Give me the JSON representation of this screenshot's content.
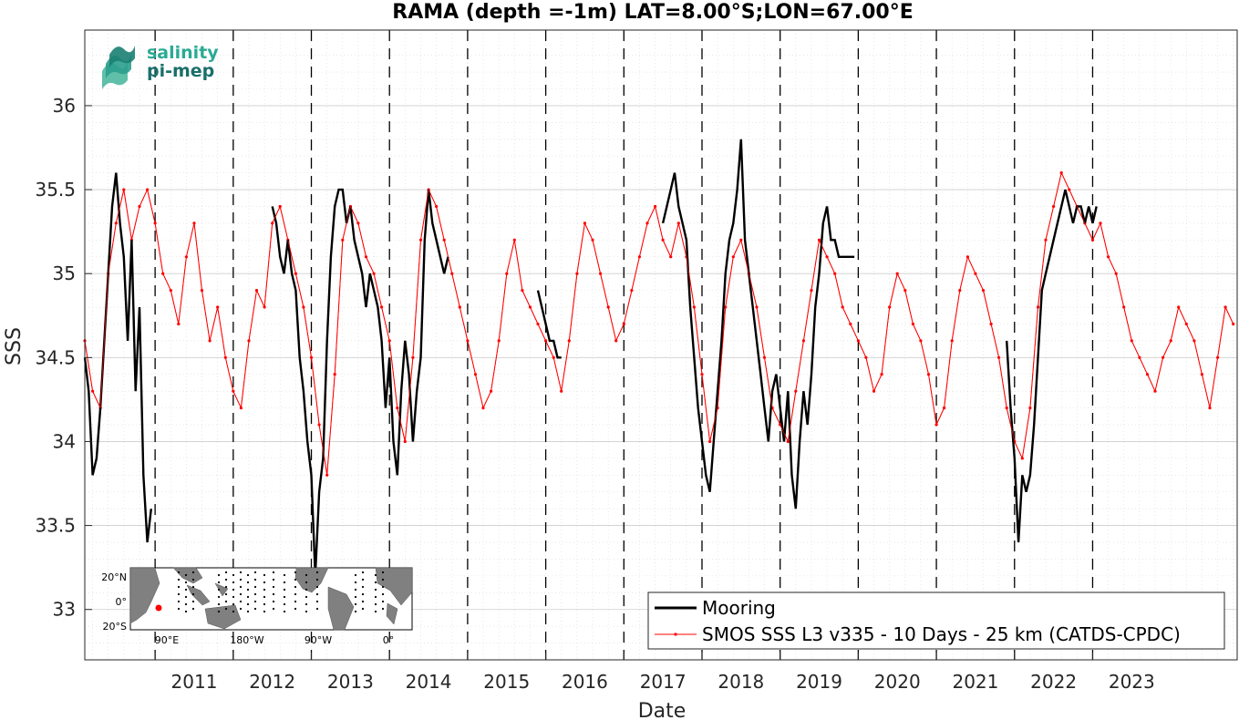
{
  "logo": {
    "line1": "salinity",
    "line2": "pi-mep"
  },
  "chart_data": {
    "type": "line",
    "title": "RAMA (depth =-1m) LAT=8.00°S;LON=67.00°E",
    "xlabel": "Date",
    "ylabel": "SSS",
    "xlim": [
      2010.1,
      2024.85
    ],
    "ylim": [
      32.7,
      36.45
    ],
    "x_ticks": [
      2011,
      2012,
      2013,
      2014,
      2015,
      2016,
      2017,
      2018,
      2019,
      2020,
      2021,
      2022,
      2023
    ],
    "x_tick_labels": [
      "2011",
      "2012",
      "2013",
      "2014",
      "2015",
      "2016",
      "2017",
      "2018",
      "2019",
      "2020",
      "2021",
      "2022",
      "2023"
    ],
    "y_ticks": [
      33,
      33.5,
      34,
      34.5,
      35,
      35.5,
      36
    ],
    "y_tick_labels": [
      "33",
      "33.5",
      "34",
      "34.5",
      "35",
      "35.5",
      "36"
    ],
    "grid": true,
    "year_dividers": [
      2011,
      2012,
      2013,
      2014,
      2015,
      2016,
      2017,
      2018,
      2019,
      2020,
      2021,
      2022,
      2023
    ],
    "legend_position": "bottom-right",
    "series": [
      {
        "name": "Mooring",
        "color": "#000000",
        "segments": [
          {
            "x": [
              2010.1,
              2010.15,
              2010.2,
              2010.25,
              2010.3,
              2010.35,
              2010.4,
              2010.45,
              2010.5,
              2010.55,
              2010.6,
              2010.65,
              2010.7,
              2010.75,
              2010.8,
              2010.85,
              2010.9,
              2010.95
            ],
            "y": [
              34.5,
              34.3,
              33.8,
              33.9,
              34.2,
              34.6,
              35.0,
              35.4,
              35.6,
              35.3,
              35.1,
              34.6,
              35.2,
              34.3,
              34.8,
              33.8,
              33.4,
              33.6
            ]
          },
          {
            "x": [
              2012.5,
              2012.55,
              2012.6,
              2012.65,
              2012.7,
              2012.75,
              2012.8,
              2012.85,
              2012.9,
              2012.95,
              2013.0,
              2013.05,
              2013.1,
              2013.15,
              2013.2,
              2013.25,
              2013.3,
              2013.35,
              2013.4,
              2013.45,
              2013.5,
              2013.55,
              2013.6,
              2013.65,
              2013.7,
              2013.75,
              2013.8,
              2013.85,
              2013.9,
              2013.95,
              2014.0,
              2014.05,
              2014.1,
              2014.15,
              2014.2,
              2014.25,
              2014.3,
              2014.35,
              2014.4,
              2014.45,
              2014.5,
              2014.55,
              2014.6,
              2014.65,
              2014.7,
              2014.75
            ],
            "y": [
              35.4,
              35.3,
              35.1,
              35.0,
              35.2,
              35.0,
              34.9,
              34.5,
              34.3,
              34.0,
              33.8,
              33.2,
              33.7,
              33.9,
              34.6,
              35.1,
              35.4,
              35.5,
              35.5,
              35.3,
              35.4,
              35.2,
              35.1,
              35.0,
              34.8,
              35.0,
              34.9,
              34.8,
              34.6,
              34.2,
              34.5,
              34.0,
              33.8,
              34.3,
              34.6,
              34.4,
              34.0,
              34.3,
              34.5,
              35.2,
              35.5,
              35.3,
              35.2,
              35.1,
              35.0,
              35.1
            ]
          },
          {
            "x": [
              2015.9,
              2015.95,
              2016.0,
              2016.05,
              2016.1,
              2016.15,
              2016.2
            ],
            "y": [
              34.9,
              34.8,
              34.7,
              34.6,
              34.6,
              34.5,
              34.5
            ]
          },
          {
            "x": [
              2017.5,
              2017.55,
              2017.6,
              2017.65,
              2017.7,
              2017.75,
              2017.8,
              2017.85,
              2017.9,
              2017.95,
              2018.0,
              2018.05,
              2018.1,
              2018.15,
              2018.2,
              2018.25,
              2018.3,
              2018.35,
              2018.4,
              2018.45,
              2018.5,
              2018.55,
              2018.6,
              2018.65,
              2018.7,
              2018.75,
              2018.8,
              2018.85,
              2018.9,
              2018.95,
              2019.0,
              2019.05,
              2019.1,
              2019.15,
              2019.2,
              2019.25,
              2019.3,
              2019.35,
              2019.4,
              2019.45,
              2019.5,
              2019.55,
              2019.6,
              2019.65,
              2019.7,
              2019.75,
              2019.8,
              2019.85,
              2019.9,
              2019.95
            ],
            "y": [
              35.3,
              35.4,
              35.5,
              35.6,
              35.4,
              35.3,
              35.2,
              34.8,
              34.5,
              34.2,
              34.0,
              33.8,
              33.7,
              34.0,
              34.3,
              34.6,
              35.0,
              35.2,
              35.3,
              35.5,
              35.8,
              35.2,
              35.0,
              34.8,
              34.6,
              34.4,
              34.2,
              34.0,
              34.3,
              34.4,
              34.2,
              34.0,
              34.3,
              33.8,
              33.6,
              34.0,
              34.3,
              34.1,
              34.4,
              34.8,
              35.0,
              35.3,
              35.4,
              35.2,
              35.2,
              35.1,
              35.1,
              35.1,
              35.1,
              35.1
            ]
          },
          {
            "x": [
              2021.9,
              2021.95,
              2022.0,
              2022.05,
              2022.1,
              2022.15,
              2022.2,
              2022.25,
              2022.3,
              2022.35,
              2022.4,
              2022.45,
              2022.5,
              2022.55,
              2022.6,
              2022.65,
              2022.7,
              2022.75,
              2022.8,
              2022.85,
              2022.9,
              2022.95,
              2023.0,
              2023.05
            ],
            "y": [
              34.6,
              34.2,
              33.9,
              33.4,
              33.8,
              33.7,
              33.8,
              34.1,
              34.5,
              34.9,
              35.0,
              35.1,
              35.2,
              35.3,
              35.4,
              35.5,
              35.4,
              35.3,
              35.4,
              35.4,
              35.3,
              35.4,
              35.3,
              35.4
            ]
          }
        ]
      },
      {
        "name": "SMOS SSS L3 v335 - 10 Days - 25 km (CATDS-CPDC)",
        "color": "#ff0000",
        "x": [
          2010.1,
          2010.2,
          2010.3,
          2010.4,
          2010.5,
          2010.6,
          2010.7,
          2010.8,
          2010.9,
          2011.0,
          2011.1,
          2011.2,
          2011.3,
          2011.4,
          2011.5,
          2011.6,
          2011.7,
          2011.8,
          2011.9,
          2012.0,
          2012.1,
          2012.2,
          2012.3,
          2012.4,
          2012.5,
          2012.6,
          2012.7,
          2012.8,
          2012.9,
          2013.0,
          2013.1,
          2013.2,
          2013.3,
          2013.4,
          2013.5,
          2013.6,
          2013.7,
          2013.8,
          2013.9,
          2014.0,
          2014.1,
          2014.2,
          2014.3,
          2014.4,
          2014.5,
          2014.6,
          2014.7,
          2014.8,
          2014.9,
          2015.0,
          2015.1,
          2015.2,
          2015.3,
          2015.4,
          2015.5,
          2015.6,
          2015.7,
          2015.8,
          2015.9,
          2016.0,
          2016.1,
          2016.2,
          2016.3,
          2016.4,
          2016.5,
          2016.6,
          2016.7,
          2016.8,
          2016.9,
          2017.0,
          2017.1,
          2017.2,
          2017.3,
          2017.4,
          2017.5,
          2017.6,
          2017.7,
          2017.8,
          2017.9,
          2018.0,
          2018.1,
          2018.2,
          2018.3,
          2018.4,
          2018.5,
          2018.6,
          2018.7,
          2018.8,
          2018.9,
          2019.0,
          2019.1,
          2019.2,
          2019.3,
          2019.4,
          2019.5,
          2019.6,
          2019.7,
          2019.8,
          2019.9,
          2020.0,
          2020.1,
          2020.2,
          2020.3,
          2020.4,
          2020.5,
          2020.6,
          2020.7,
          2020.8,
          2020.9,
          2021.0,
          2021.1,
          2021.2,
          2021.3,
          2021.4,
          2021.5,
          2021.6,
          2021.7,
          2021.8,
          2021.9,
          2022.0,
          2022.1,
          2022.2,
          2022.3,
          2022.4,
          2022.5,
          2022.6,
          2022.7,
          2022.8,
          2022.9,
          2023.0,
          2023.1,
          2023.2,
          2023.3,
          2023.4,
          2023.5,
          2023.6,
          2023.7,
          2023.8,
          2023.9,
          2024.0,
          2024.1,
          2024.2,
          2024.3,
          2024.4,
          2024.5,
          2024.6,
          2024.7,
          2024.8
        ],
        "y": [
          34.6,
          34.3,
          34.2,
          35.0,
          35.3,
          35.5,
          35.2,
          35.4,
          35.5,
          35.3,
          35.0,
          34.9,
          34.7,
          35.1,
          35.3,
          34.9,
          34.6,
          34.8,
          34.5,
          34.3,
          34.2,
          34.6,
          34.9,
          34.8,
          35.3,
          35.4,
          35.2,
          35.0,
          34.8,
          34.5,
          34.1,
          33.8,
          34.4,
          35.2,
          35.4,
          35.3,
          35.1,
          35.0,
          34.8,
          34.6,
          34.2,
          34.0,
          34.5,
          35.2,
          35.5,
          35.4,
          35.2,
          35.0,
          34.8,
          34.6,
          34.4,
          34.2,
          34.3,
          34.6,
          35.0,
          35.2,
          34.9,
          34.8,
          34.7,
          34.6,
          34.5,
          34.3,
          34.6,
          35.0,
          35.3,
          35.2,
          35.0,
          34.8,
          34.6,
          34.7,
          34.9,
          35.1,
          35.3,
          35.4,
          35.2,
          35.1,
          35.3,
          35.1,
          34.8,
          34.4,
          34.0,
          34.2,
          34.8,
          35.1,
          35.2,
          35.0,
          34.8,
          34.5,
          34.2,
          34.1,
          34.0,
          34.3,
          34.6,
          34.9,
          35.2,
          35.1,
          35.0,
          34.8,
          34.7,
          34.6,
          34.5,
          34.3,
          34.4,
          34.8,
          35.0,
          34.9,
          34.7,
          34.6,
          34.4,
          34.1,
          34.2,
          34.6,
          34.9,
          35.1,
          35.0,
          34.9,
          34.7,
          34.5,
          34.2,
          34.0,
          33.9,
          34.2,
          34.8,
          35.2,
          35.4,
          35.6,
          35.5,
          35.4,
          35.3,
          35.2,
          35.3,
          35.1,
          35.0,
          34.8,
          34.6,
          34.5,
          34.4,
          34.3,
          34.5,
          34.6,
          34.8,
          34.7,
          34.6,
          34.4,
          34.2,
          34.5,
          34.8,
          34.7
        ]
      }
    ],
    "inset_map": {
      "y_labels": [
        "20°N",
        "0°",
        "20°S"
      ],
      "x_labels": [
        "90°E",
        "180°W",
        "90°W",
        "0°"
      ],
      "marker_color": "#ff0000"
    }
  }
}
